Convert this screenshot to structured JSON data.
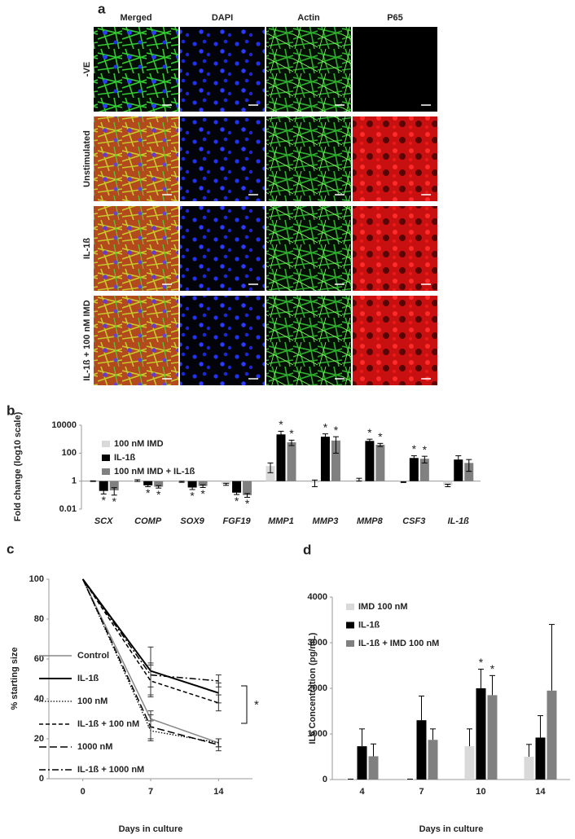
{
  "image_panel": {
    "label": "a",
    "columns": [
      "Merged",
      "DAPI",
      "Actin",
      "P65"
    ],
    "rows": [
      "-VE",
      "Unstimulated",
      "IL-1ß",
      "IL-1ß + 100 nM IMD"
    ]
  },
  "chart_data": [
    {
      "type": "bar",
      "label": "b",
      "y_label": "Fold change (log10 scale)",
      "log_scale": true,
      "ylim": [
        0.01,
        10000
      ],
      "yticks": [
        0.01,
        1,
        100,
        10000
      ],
      "error_bars": "both",
      "legend": "upper left",
      "categories": [
        "SCX",
        "COMP",
        "SOX9",
        "FGF19",
        "MMP1",
        "MMP3",
        "MMP8",
        "CSF3",
        "IL-1ß"
      ],
      "series": [
        {
          "name": "100 nM IMD",
          "color": "#d9d9d9",
          "values": [
            1,
            1.1,
            0.9,
            0.6,
            12,
            0.8,
            1.3,
            0.85,
            0.5
          ],
          "errors": [
            0.05,
            0.15,
            0.08,
            0.1,
            8,
            0.4,
            0.3,
            0.05,
            0.1
          ],
          "markers": [
            null,
            null,
            null,
            null,
            null,
            null,
            null,
            null,
            null
          ]
        },
        {
          "name": "IL-1ß",
          "color": "#000000",
          "values": [
            0.2,
            0.5,
            0.35,
            0.15,
            2200,
            1500,
            750,
            45,
            35
          ],
          "errors": [
            0.08,
            0.1,
            0.1,
            0.04,
            1500,
            900,
            250,
            20,
            30
          ],
          "markers": [
            "*",
            "*",
            "*",
            "*",
            "*",
            "*",
            "*",
            "*",
            null
          ]
        },
        {
          "name": "100 nM IMD + IL-1ß",
          "color": "#808080",
          "values": [
            0.22,
            0.4,
            0.45,
            0.1,
            600,
            800,
            400,
            40,
            20
          ],
          "errors": [
            0.12,
            0.08,
            0.1,
            0.03,
            250,
            700,
            100,
            20,
            15
          ],
          "markers": [
            "*",
            "*",
            "*",
            "*",
            "*",
            "*",
            "*",
            "*",
            null
          ]
        }
      ]
    },
    {
      "type": "line",
      "label": "c",
      "x_label": "Days in culture",
      "y_label": "% starting size",
      "x": [
        0,
        7,
        14
      ],
      "xlim": [
        -3.5,
        17.5
      ],
      "xticks": [
        0,
        7,
        14
      ],
      "ylim": [
        0,
        100
      ],
      "yticks": [
        0,
        20,
        40,
        60,
        80,
        100
      ],
      "legend": "left",
      "annotation": "*",
      "series": [
        {
          "name": "Control",
          "color": "#888888",
          "dash": "solid",
          "values": [
            100,
            30,
            18
          ],
          "errors": [
            0,
            4,
            2
          ]
        },
        {
          "name": "IL-1ß",
          "color": "#000000",
          "dash": "bold",
          "values": [
            100,
            54,
            43
          ],
          "errors": [
            0,
            12,
            5
          ]
        },
        {
          "name": "100 nM",
          "color": "#000000",
          "dash": "dotted",
          "values": [
            100,
            24,
            18
          ],
          "errors": [
            0,
            5,
            2
          ]
        },
        {
          "name": "IL-1ß + 100 nM",
          "color": "#000000",
          "dash": "dashed",
          "values": [
            100,
            49,
            38
          ],
          "errors": [
            0,
            8,
            4
          ]
        },
        {
          "name": "1000 nM",
          "color": "#000000",
          "dash": "longdash",
          "values": [
            100,
            26,
            17
          ],
          "errors": [
            0,
            6,
            3
          ]
        },
        {
          "name": "IL-1ß + 1000 nM",
          "color": "#000000",
          "dash": "dashdot",
          "values": [
            100,
            52,
            49
          ],
          "errors": [
            0,
            6,
            3
          ]
        }
      ]
    },
    {
      "type": "bar",
      "label": "d",
      "x_label": "Days in culture",
      "y_label": "IL6 Concentration (pg/mL)",
      "log_scale": false,
      "ylim": [
        0,
        4000
      ],
      "yticks": [
        0,
        1000,
        2000,
        3000,
        4000
      ],
      "error_bars": "upper",
      "legend": "upper left",
      "categories": [
        "4",
        "7",
        "10",
        "14"
      ],
      "series": [
        {
          "name": "IMD 100 nM",
          "color": "#d9d9d9",
          "values": [
            10,
            10,
            730,
            500
          ],
          "errors": [
            0,
            0,
            380,
            270
          ],
          "markers": [
            null,
            null,
            null,
            null
          ]
        },
        {
          "name": "IL-1ß",
          "color": "#000000",
          "values": [
            730,
            1300,
            2000,
            920
          ],
          "errors": [
            380,
            530,
            420,
            480
          ],
          "markers": [
            null,
            null,
            "*",
            null
          ]
        },
        {
          "name": "IL-1ß + IMD 100 nM",
          "color": "#808080",
          "values": [
            510,
            870,
            1850,
            1950
          ],
          "errors": [
            270,
            240,
            430,
            1450
          ],
          "markers": [
            null,
            null,
            "*",
            null
          ]
        }
      ]
    }
  ]
}
